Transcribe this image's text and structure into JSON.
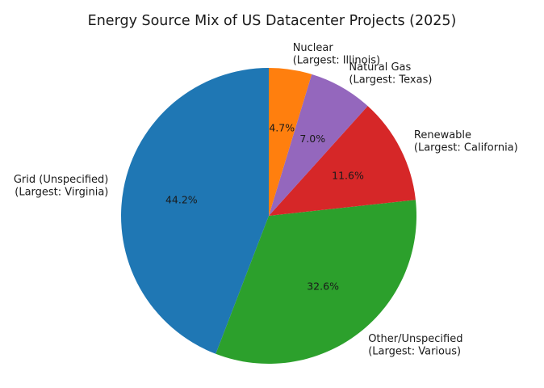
{
  "figure": {
    "background": "#ffffff"
  },
  "chart_data": {
    "type": "pie",
    "title": "Energy Source Mix of US Datacenter Projects (2025)",
    "start_angle": 90,
    "direction": "counterclockwise",
    "legend": "none",
    "text_color": "#1a1a1a",
    "slices": [
      {
        "label": "Grid (Unspecified)",
        "sublabel": "(Largest: Virginia)",
        "value": 44.2,
        "pct": "44.2%",
        "color": "#1f77b4"
      },
      {
        "label": "Other/Unspecified",
        "sublabel": "(Largest: Various)",
        "value": 32.6,
        "pct": "32.6%",
        "color": "#2ca02c"
      },
      {
        "label": "Renewable",
        "sublabel": "(Largest: California)",
        "value": 11.6,
        "pct": "11.6%",
        "color": "#d62728"
      },
      {
        "label": "Natural Gas",
        "sublabel": "(Largest: Texas)",
        "value": 7.0,
        "pct": "7.0%",
        "color": "#9467bd"
      },
      {
        "label": "Nuclear",
        "sublabel": "(Largest: Illinois)",
        "value": 4.7,
        "pct": "4.7%",
        "color": "#ff7f0e"
      }
    ]
  }
}
